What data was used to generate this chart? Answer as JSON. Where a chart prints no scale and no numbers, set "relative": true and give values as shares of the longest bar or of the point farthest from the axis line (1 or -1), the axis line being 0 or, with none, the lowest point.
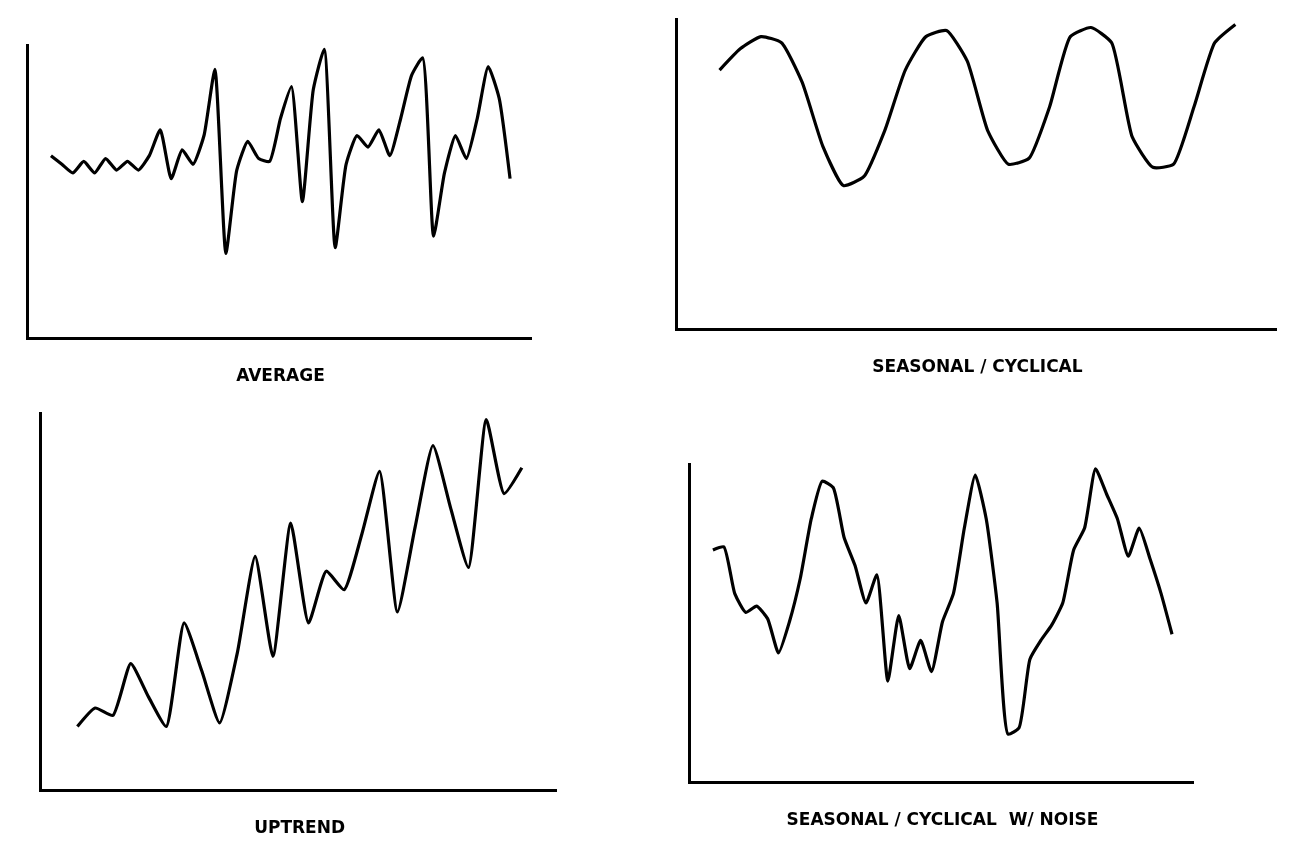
{
  "chart_data": [
    {
      "type": "line",
      "relative": true,
      "xlabel": "AVERAGE",
      "color": "#000000",
      "marker": "none",
      "line_style": "solid",
      "categories": [
        null,
        null,
        null,
        null,
        null,
        null,
        null,
        null,
        null,
        null,
        null,
        null,
        null,
        null,
        null,
        null,
        null,
        null,
        null,
        null,
        null,
        null,
        null,
        null,
        null,
        null,
        null,
        null,
        null,
        null,
        null,
        null,
        null,
        null,
        null,
        null,
        null,
        null,
        null,
        null,
        null,
        null,
        null
      ],
      "values": [
        0.63,
        0.6,
        0.57,
        0.61,
        0.57,
        0.62,
        0.58,
        0.61,
        0.58,
        0.63,
        0.72,
        0.55,
        0.65,
        0.6,
        0.7,
        0.93,
        0.29,
        0.58,
        0.68,
        0.62,
        0.61,
        0.76,
        0.87,
        0.47,
        0.86,
        1.0,
        0.31,
        0.6,
        0.7,
        0.66,
        0.72,
        0.63,
        0.76,
        0.91,
        0.97,
        0.35,
        0.57,
        0.7,
        0.62,
        0.76,
        0.94,
        0.83,
        0.55
      ]
    },
    {
      "type": "line",
      "relative": true,
      "xlabel": "SEASONAL / CYCLICAL",
      "color": "#000000",
      "marker": "none",
      "line_style": "solid",
      "categories": [
        null,
        null,
        null,
        null,
        null,
        null,
        null,
        null,
        null,
        null,
        null,
        null,
        null,
        null,
        null,
        null,
        null,
        null,
        null,
        null,
        null,
        null,
        null,
        null,
        null,
        null
      ],
      "values": [
        0.85,
        0.92,
        0.96,
        0.94,
        0.81,
        0.6,
        0.47,
        0.5,
        0.65,
        0.85,
        0.96,
        0.98,
        0.88,
        0.65,
        0.54,
        0.56,
        0.73,
        0.96,
        0.99,
        0.94,
        0.63,
        0.53,
        0.54,
        0.73,
        0.94,
        1.0
      ]
    },
    {
      "type": "line",
      "relative": true,
      "xlabel": "UPTREND",
      "color": "#000000",
      "marker": "none",
      "line_style": "solid",
      "categories": [
        null,
        null,
        null,
        null,
        null,
        null,
        null,
        null,
        null,
        null,
        null,
        null,
        null,
        null,
        null,
        null,
        null,
        null,
        null,
        null,
        null,
        null,
        null,
        null,
        null,
        null
      ],
      "values": [
        0.17,
        0.22,
        0.2,
        0.34,
        0.25,
        0.17,
        0.45,
        0.32,
        0.18,
        0.37,
        0.63,
        0.36,
        0.72,
        0.45,
        0.59,
        0.54,
        0.69,
        0.86,
        0.48,
        0.71,
        0.93,
        0.76,
        0.6,
        1.0,
        0.8,
        0.87
      ]
    },
    {
      "type": "line",
      "relative": true,
      "xlabel": "SEASONAL / CYCLICAL  W/ NOISE",
      "color": "#000000",
      "marker": "none",
      "line_style": "solid",
      "categories": [
        null,
        null,
        null,
        null,
        null,
        null,
        null,
        null,
        null,
        null,
        null,
        null,
        null,
        null,
        null,
        null,
        null,
        null,
        null,
        null,
        null,
        null,
        null,
        null,
        null,
        null,
        null,
        null,
        null,
        null,
        null,
        null,
        null,
        null,
        null,
        null,
        null,
        null,
        null,
        null,
        null,
        null,
        null
      ],
      "values": [
        0.74,
        0.75,
        0.6,
        0.54,
        0.56,
        0.52,
        0.41,
        0.51,
        0.65,
        0.84,
        0.96,
        0.94,
        0.78,
        0.69,
        0.57,
        0.66,
        0.32,
        0.53,
        0.36,
        0.45,
        0.35,
        0.51,
        0.6,
        0.81,
        0.98,
        0.84,
        0.57,
        0.15,
        0.17,
        0.39,
        0.45,
        0.5,
        0.57,
        0.74,
        0.81,
        1.0,
        0.92,
        0.84,
        0.72,
        0.81,
        0.71,
        0.6,
        0.47
      ]
    }
  ]
}
